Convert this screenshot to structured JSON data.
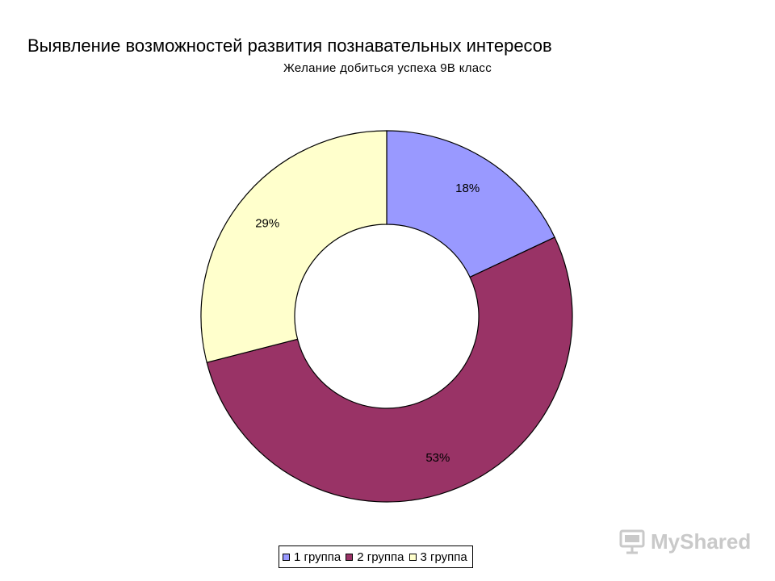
{
  "page_heading": "Выявление возможностей развития познавательных интересов",
  "watermark": {
    "text": "MyShared",
    "icon": "presentation-board-icon",
    "color": "#c9c9c9"
  },
  "chart_data": {
    "type": "pie",
    "style": "doughnut",
    "title": "Желание добиться успеха 9В класс",
    "categories": [
      "1 группа",
      "2 группа",
      "3 группа"
    ],
    "values": [
      18,
      53,
      29
    ],
    "labels": [
      "18%",
      "53%",
      "29%"
    ],
    "colors": [
      "#9999ff",
      "#993366",
      "#ffffcc"
    ],
    "start_angle_deg": 0,
    "direction": "clockwise",
    "legend_position": "bottom"
  }
}
